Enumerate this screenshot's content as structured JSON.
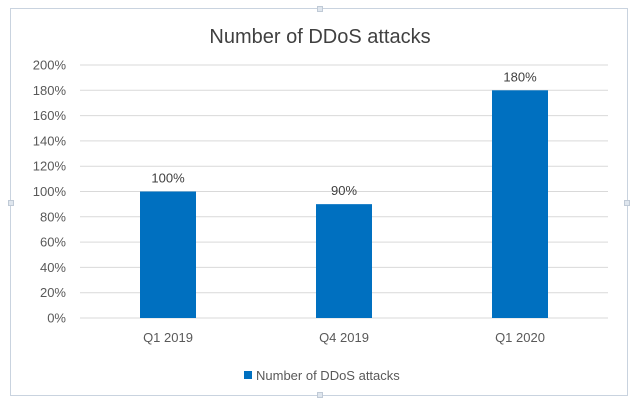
{
  "chart_data": {
    "type": "bar",
    "title": "Number of DDoS attacks",
    "categories": [
      "Q1 2019",
      "Q4 2019",
      "Q1 2020"
    ],
    "series": [
      {
        "name": "Number of DDoS attacks",
        "values": [
          100,
          90,
          180
        ],
        "color": "#0070c0"
      }
    ],
    "data_labels": [
      "100%",
      "90%",
      "180%"
    ],
    "y_ticks": [
      "0%",
      "20%",
      "40%",
      "60%",
      "80%",
      "100%",
      "120%",
      "140%",
      "160%",
      "180%",
      "200%"
    ],
    "ylim": [
      0,
      200
    ],
    "grid": true,
    "legend_position": "bottom"
  }
}
